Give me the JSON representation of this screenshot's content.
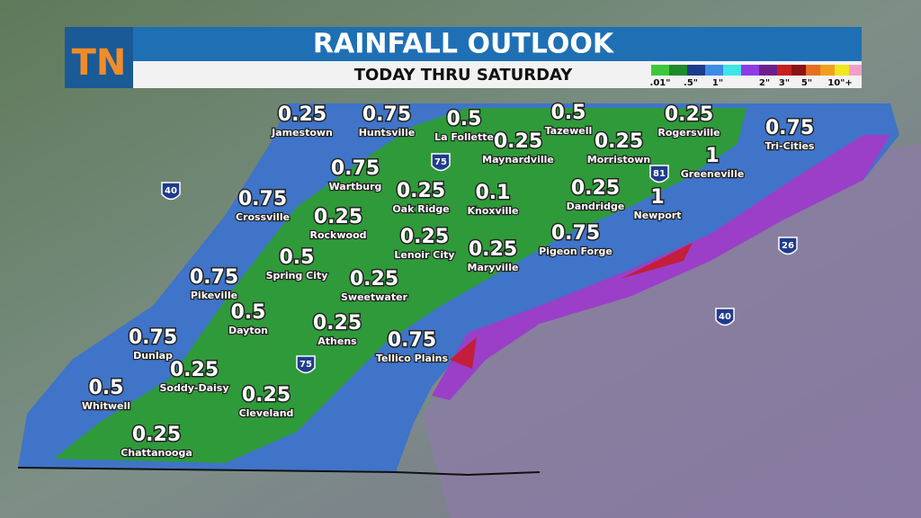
{
  "header": {
    "title": "RAINFALL OUTLOOK",
    "subtitle": "TODAY THRU SATURDAY",
    "logo": "TN"
  },
  "legend": {
    "labels": [
      ".01\"",
      ".5\"",
      "1\"",
      "2\"",
      "3\"",
      "5\"",
      "10\"+"
    ]
  },
  "cities": [
    {
      "name": "Jamestown",
      "amount": "0.25"
    },
    {
      "name": "Huntsville",
      "amount": "0.75"
    },
    {
      "name": "La Follette",
      "amount": "0.5"
    },
    {
      "name": "Tazewell",
      "amount": "0.5"
    },
    {
      "name": "Rogersville",
      "amount": "0.25"
    },
    {
      "name": "Tri-Cities",
      "amount": "0.75"
    },
    {
      "name": "Maynardville",
      "amount": "0.25"
    },
    {
      "name": "Morristown",
      "amount": "0.25"
    },
    {
      "name": "Greeneville",
      "amount": "1"
    },
    {
      "name": "Wartburg",
      "amount": "0.75"
    },
    {
      "name": "Oak Ridge",
      "amount": "0.25"
    },
    {
      "name": "Knoxville",
      "amount": "0.1"
    },
    {
      "name": "Dandridge",
      "amount": "0.25"
    },
    {
      "name": "Newport",
      "amount": "1"
    },
    {
      "name": "Crossville",
      "amount": "0.75"
    },
    {
      "name": "Rockwood",
      "amount": "0.25"
    },
    {
      "name": "Lenoir City",
      "amount": "0.25"
    },
    {
      "name": "Maryville",
      "amount": "0.25"
    },
    {
      "name": "Pigeon Forge",
      "amount": "0.75"
    },
    {
      "name": "Spring City",
      "amount": "0.5"
    },
    {
      "name": "Sweetwater",
      "amount": "0.25"
    },
    {
      "name": "Pikeville",
      "amount": "0.75"
    },
    {
      "name": "Dayton",
      "amount": "0.5"
    },
    {
      "name": "Athens",
      "amount": "0.25"
    },
    {
      "name": "Tellico Plains",
      "amount": "0.75"
    },
    {
      "name": "Dunlap",
      "amount": "0.75"
    },
    {
      "name": "Soddy-Daisy",
      "amount": "0.25"
    },
    {
      "name": "Cleveland",
      "amount": "0.25"
    },
    {
      "name": "Whitwell",
      "amount": "0.5"
    },
    {
      "name": "Chattanooga",
      "amount": "0.25"
    }
  ],
  "interstates": [
    "40",
    "75",
    "81",
    "26",
    "40",
    "75"
  ]
}
